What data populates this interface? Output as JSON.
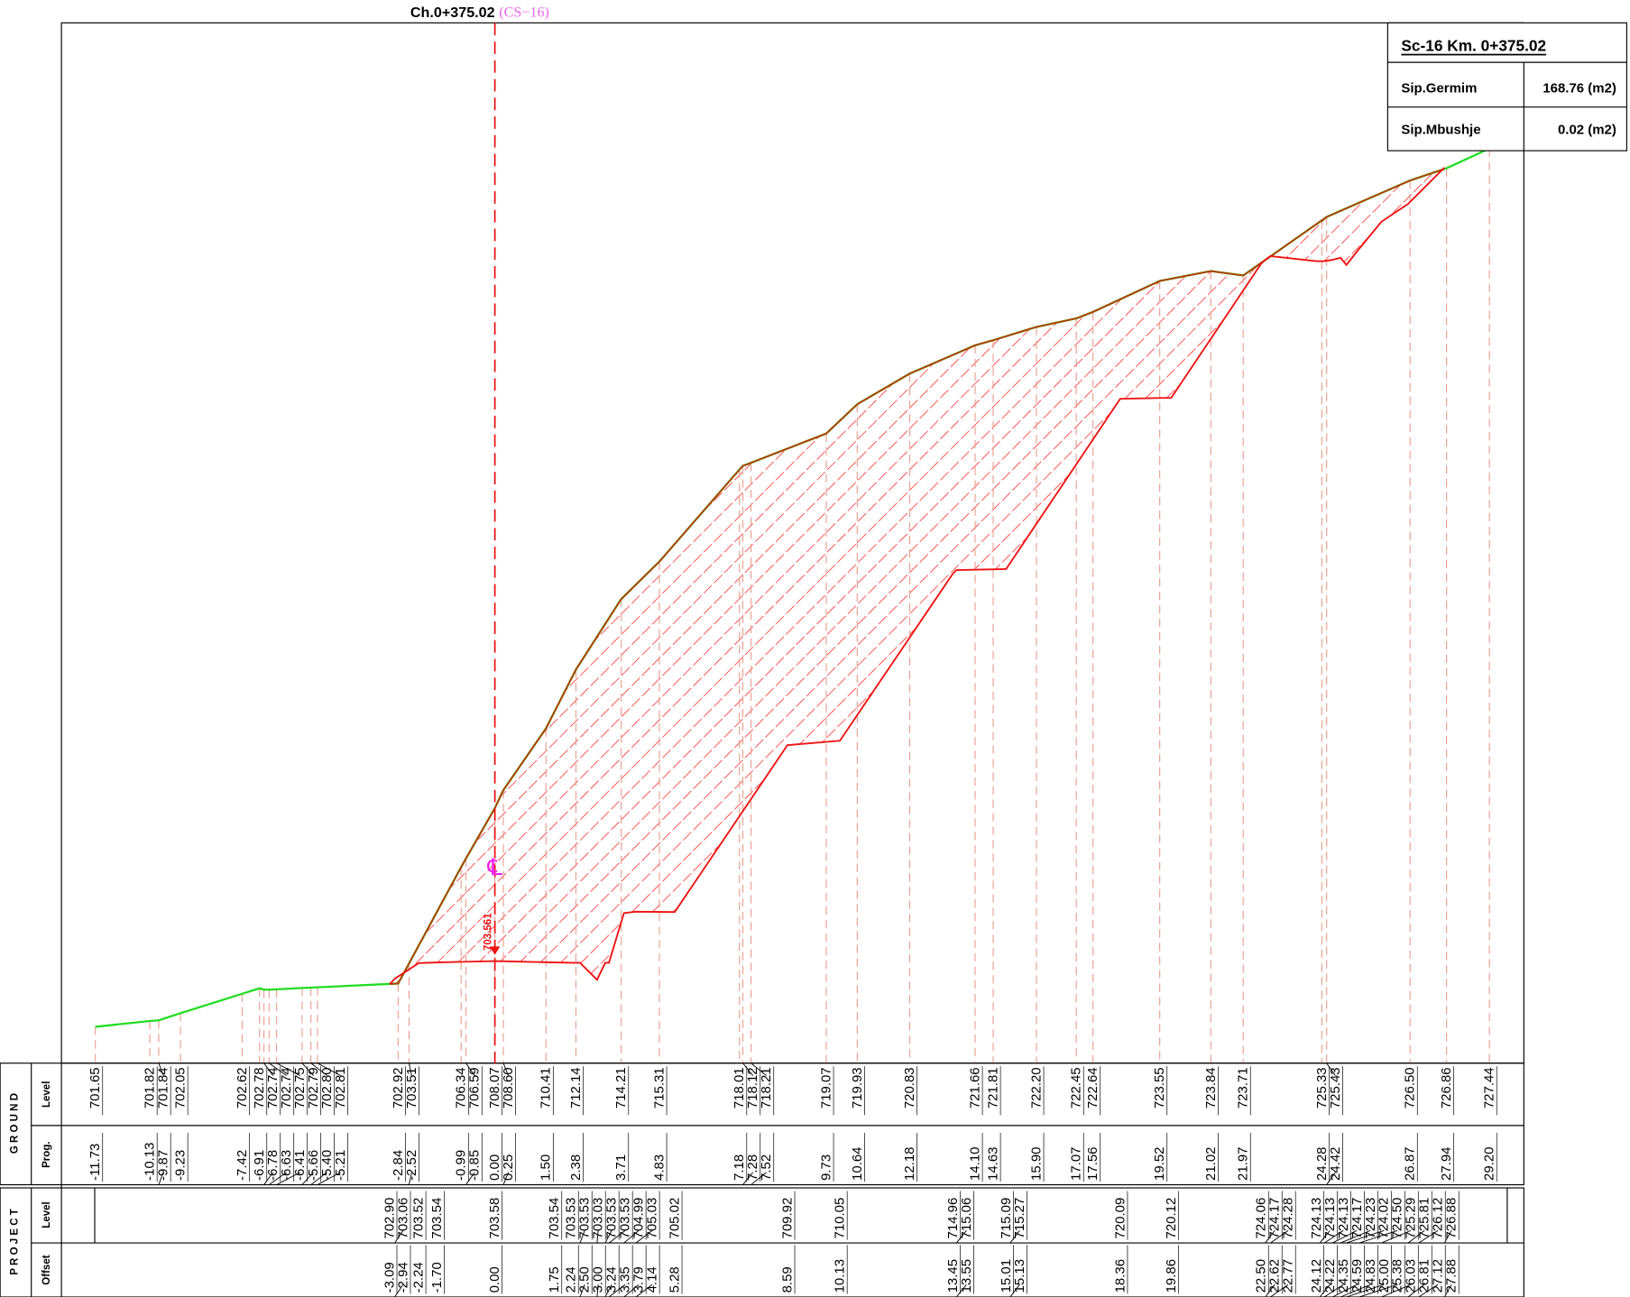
{
  "header": {
    "chainage": "Ch.0+375.02",
    "section": "(CS−16)"
  },
  "summary": {
    "title": "Sc-16  Km. 0+375.02",
    "rows": [
      [
        "Sip.Germim",
        "168.76 (m2)"
      ],
      [
        "Sip.Mbushje",
        "0.02 (m2)"
      ]
    ]
  },
  "centerline": {
    "symbol": "℄",
    "level": "703.561"
  },
  "row_labels": {
    "ground": "G R O U N D",
    "ground_level": "Level",
    "ground_prog": "Prog.",
    "project": "P R O J E C T",
    "project_level": "Level",
    "project_offset": "Offset"
  },
  "ground": {
    "prog": [
      "-11.73",
      "-10.13",
      "-9.87",
      "-9.23",
      "-7.42",
      "-6.91",
      "-6.78",
      "-6.63",
      "-6.41",
      "-5.66",
      "-5.40",
      "-5.21",
      "-2.84",
      "-2.52",
      "-0.99",
      "-0.85",
      "0.00",
      "0.25",
      "1.50",
      "2.38",
      "3.71",
      "4.83",
      "7.18",
      "7.28",
      "7.52",
      "9.73",
      "10.64",
      "12.18",
      "14.10",
      "14.63",
      "15.90",
      "17.07",
      "17.56",
      "19.52",
      "21.02",
      "21.97",
      "24.28",
      "24.42",
      "26.87",
      "27.94",
      "29.20"
    ],
    "level": [
      "701.65",
      "701.82",
      "701.84",
      "702.05",
      "702.62",
      "702.78",
      "702.74",
      "702.74",
      "702.75",
      "702.79",
      "702.80",
      "702.81",
      "702.92",
      "703.51",
      "706.34",
      "706.59",
      "708.07",
      "708.60",
      "710.41",
      "712.14",
      "714.21",
      "715.31",
      "718.01",
      "718.12",
      "718.21",
      "719.07",
      "719.93",
      "720.83",
      "721.66",
      "721.81",
      "722.20",
      "722.45",
      "722.64",
      "723.55",
      "723.84",
      "723.71",
      "725.33",
      "725.43",
      "726.50",
      "726.86",
      "727.44"
    ]
  },
  "project": {
    "offset": [
      "-3.09",
      "-2.94",
      "-2.24",
      "-1.70",
      "0.00",
      "1.75",
      "2.24",
      "2.50",
      "3.00",
      "3.24",
      "3.35",
      "3.79",
      "4.14",
      "5.28",
      "8.59",
      "10.13",
      "13.45",
      "13.55",
      "15.01",
      "15.13",
      "18.36",
      "19.86",
      "22.50",
      "22.62",
      "22.77",
      "24.12",
      "24.22",
      "24.35",
      "24.59",
      "24.83",
      "25.00",
      "25.38",
      "26.03",
      "26.81",
      "27.12",
      "27.88"
    ],
    "level": [
      "702.90",
      "703.06",
      "703.52",
      "703.54",
      "703.58",
      "703.54",
      "703.53",
      "703.53",
      "703.03",
      "703.53",
      "703.53",
      "704.99",
      "705.03",
      "705.02",
      "709.92",
      "710.05",
      "714.96",
      "715.06",
      "715.09",
      "715.27",
      "720.09",
      "720.12",
      "724.06",
      "724.17",
      "724.28",
      "724.13",
      "724.13",
      "724.13",
      "724.17",
      "724.23",
      "724.02",
      "724.50",
      "725.29",
      "725.81",
      "726.12",
      "726.88"
    ]
  }
}
